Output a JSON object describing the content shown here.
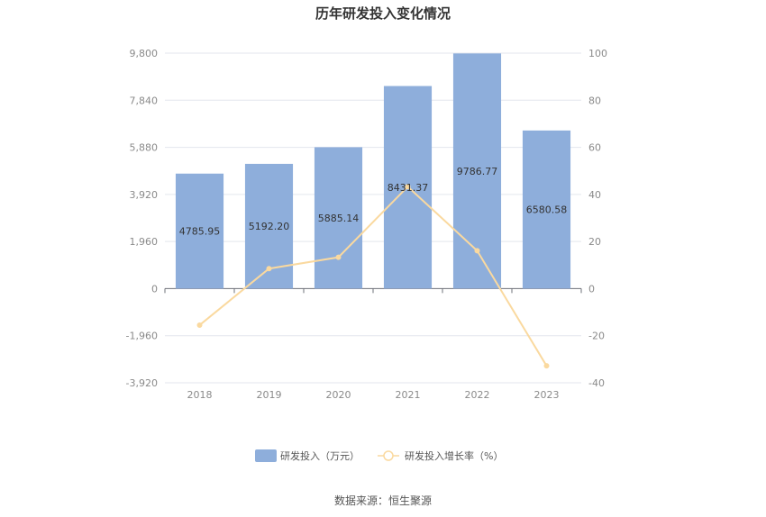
{
  "chart_data": {
    "type": "bar",
    "title": "历年研发投入变化情况",
    "categories": [
      "2018",
      "2019",
      "2020",
      "2021",
      "2022",
      "2023"
    ],
    "series": [
      {
        "name": "研发投入（万元）",
        "type": "bar",
        "axis": "left",
        "values": [
          4785.95,
          5192.2,
          5885.14,
          8431.37,
          9786.77,
          6580.58
        ],
        "labels": [
          "4785.95",
          "5192.20",
          "5885.14",
          "8431.37",
          "9786.77",
          "6580.58"
        ],
        "color": "#8eaedb"
      },
      {
        "name": "研发投入增长率（%）",
        "type": "line",
        "axis": "right",
        "values": [
          -15.5,
          8.5,
          13.3,
          43.3,
          16.1,
          -32.8
        ],
        "color": "#fad99f"
      }
    ],
    "y_left": {
      "ylim": [
        -3920,
        9800
      ],
      "ticks": [
        "9,800",
        "7,840",
        "5,880",
        "3,920",
        "1,960",
        "0",
        "-1,960",
        "-3,920"
      ],
      "tick_values": [
        9800,
        7840,
        5880,
        3920,
        1960,
        0,
        -1960,
        -3920
      ]
    },
    "y_right": {
      "ylim": [
        -40,
        100
      ],
      "ticks": [
        "100",
        "80",
        "60",
        "40",
        "20",
        "0",
        "-20",
        "-40"
      ],
      "tick_values": [
        100,
        80,
        60,
        40,
        20,
        0,
        -20,
        -40
      ]
    },
    "grid": true,
    "legend_position": "bottom"
  },
  "source_text": "数据来源：恒生聚源"
}
